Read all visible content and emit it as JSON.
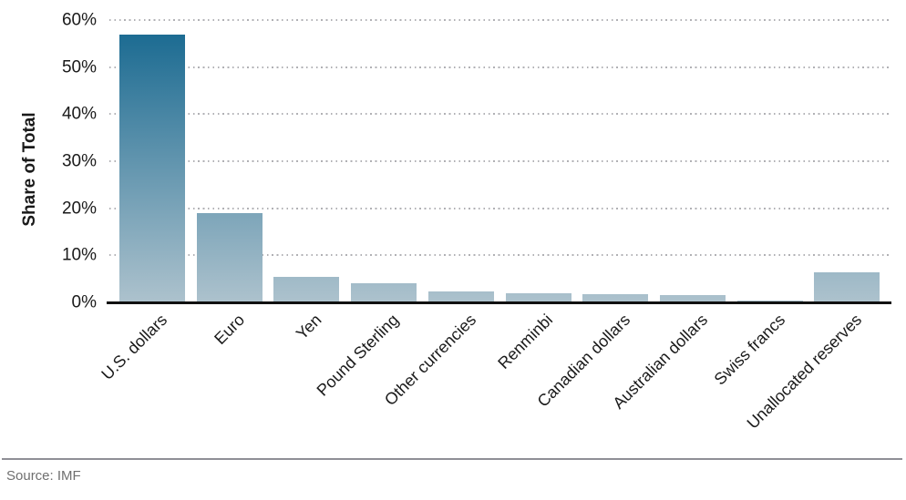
{
  "chart_data": {
    "type": "bar",
    "categories": [
      "U.S. dollars",
      "Euro",
      "Yen",
      "Pound Sterling",
      "Other currencies",
      "Renminbi",
      "Canadian dollars",
      "Australian dollars",
      "Swiss francs",
      "Unallocated reserves"
    ],
    "values": [
      57,
      19,
      5.4,
      4.1,
      2.4,
      2.0,
      1.7,
      1.6,
      0.3,
      6.3
    ],
    "title": "",
    "xlabel": "",
    "ylabel": "Share of Total",
    "ylim": [
      0,
      60
    ],
    "yticks": [
      "0%",
      "10%",
      "20%",
      "30%",
      "40%",
      "50%",
      "60%"
    ],
    "grid": "dotted horizontal gridlines at each 10%",
    "legend": "none",
    "bar_style": "vertical gradient shared across plot, dark at top scale, light at baseline"
  },
  "colors": {
    "bar_gradient_top": "#15678f",
    "bar_gradient_bottom": "#adc2cd",
    "gridline": "#b0b0b4",
    "axis_line": "#111111",
    "divider": "#8f8f96",
    "source_text": "#6f6f6f"
  },
  "footer": {
    "source": "Source: IMF"
  }
}
